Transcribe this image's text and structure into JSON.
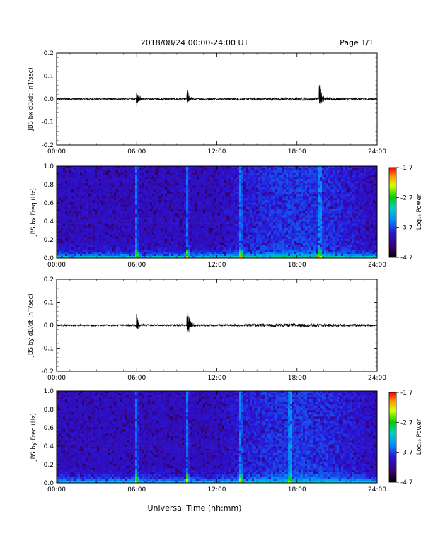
{
  "header": {
    "title": "2018/08/24  00:00-24:00 UT",
    "page": "Page 1/1"
  },
  "xlabel": "Universal Time (hh:mm)",
  "chart_data": [
    {
      "type": "line",
      "ylabel": "JBS bx dB/dt (nT/sec)",
      "xlim": [
        0,
        24
      ],
      "ylim": [
        -0.2,
        0.2
      ],
      "x_ticks": [
        "00:00",
        "06:00",
        "12:00",
        "18:00",
        "24:00"
      ],
      "y_ticks": [
        "-0.2",
        "-0.1",
        "0.0",
        "0.1",
        "0.2"
      ],
      "baseline": 0.0,
      "bursts": [
        {
          "t": 6.0,
          "peak": 0.065,
          "trough": -0.035
        },
        {
          "t": 9.8,
          "peak": 0.045,
          "trough": -0.025
        },
        {
          "t": 19.7,
          "peak": 0.065,
          "trough": -0.03
        }
      ]
    },
    {
      "type": "heatmap",
      "ylabel": "JBS bx Freq (Hz)",
      "xlim": [
        0,
        24
      ],
      "ylim": [
        0.0,
        1.0
      ],
      "x_ticks": [
        "00:00",
        "06:00",
        "12:00",
        "18:00",
        "24:00"
      ],
      "y_ticks": [
        "0.0",
        "0.2",
        "0.4",
        "0.6",
        "0.8",
        "1.0"
      ],
      "colorbar": {
        "label": "Log₁₀ Power",
        "ticks": [
          "-1.7",
          "-2.7",
          "-3.7",
          "-4.7"
        ],
        "min": -4.7,
        "max": -1.7
      },
      "bright_times": [
        6.0,
        9.8,
        13.8,
        19.7
      ]
    },
    {
      "type": "line",
      "ylabel": "JBS by dB/dt (nT/sec)",
      "xlim": [
        0,
        24
      ],
      "ylim": [
        -0.2,
        0.2
      ],
      "x_ticks": [
        "00:00",
        "06:00",
        "12:00",
        "18:00",
        "24:00"
      ],
      "y_ticks": [
        "-0.2",
        "-0.1",
        "0.0",
        "0.1",
        "0.2"
      ],
      "baseline": 0.0,
      "bursts": [
        {
          "t": 6.0,
          "peak": 0.06,
          "trough": -0.03
        },
        {
          "t": 9.8,
          "peak": 0.08,
          "trough": -0.07
        }
      ]
    },
    {
      "type": "heatmap",
      "ylabel": "JBS by Freq (Hz)",
      "xlim": [
        0,
        24
      ],
      "ylim": [
        0.0,
        1.0
      ],
      "x_ticks": [
        "00:00",
        "06:00",
        "12:00",
        "18:00",
        "24:00"
      ],
      "y_ticks": [
        "0.0",
        "0.2",
        "0.4",
        "0.6",
        "0.8",
        "1.0"
      ],
      "colorbar": {
        "label": "Log₁₀ Power",
        "ticks": [
          "-1.7",
          "-2.7",
          "-3.7",
          "-4.7"
        ],
        "min": -4.7,
        "max": -1.7
      },
      "bright_times": [
        6.0,
        9.8,
        13.8,
        17.5
      ]
    }
  ]
}
